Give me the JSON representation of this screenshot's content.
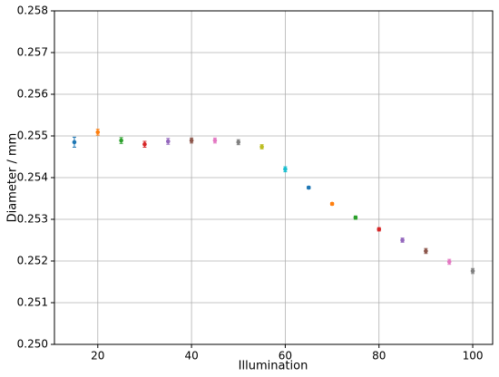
{
  "chart_data": {
    "type": "errorbar",
    "x_label": "Illumination",
    "y_label": "Diameter / mm",
    "x": [
      15,
      20,
      25,
      30,
      35,
      40,
      45,
      50,
      55,
      60,
      65,
      70,
      75,
      80,
      85,
      90,
      95,
      100
    ],
    "values": [
      0.25485,
      0.25509,
      0.25489,
      0.2548,
      0.25487,
      0.25489,
      0.25489,
      0.25485,
      0.25474,
      0.2542,
      0.25376,
      0.25337,
      0.25304,
      0.25276,
      0.2525,
      0.25224,
      0.25198,
      0.25176
    ],
    "errors": [
      0.00012,
      7e-05,
      7e-05,
      7e-05,
      7e-05,
      6e-05,
      6e-05,
      6e-05,
      5e-05,
      6e-05,
      3e-05,
      3e-05,
      4e-05,
      4e-05,
      5e-05,
      6e-05,
      6e-05,
      6e-05
    ],
    "colors": [
      "#1f77b4",
      "#ff7f0e",
      "#2ca02c",
      "#d62728",
      "#9467bd",
      "#8c564b",
      "#e377c2",
      "#7f7f7f",
      "#bcbd22",
      "#17becf",
      "#1f77b4",
      "#ff7f0e",
      "#2ca02c",
      "#d62728",
      "#9467bd",
      "#8c564b",
      "#e377c2",
      "#7f7f7f"
    ],
    "xlim": [
      10.75,
      104.25
    ],
    "xticks": [
      20,
      40,
      60,
      80,
      100
    ],
    "ylim": [
      0.25,
      0.258
    ],
    "yticks": [
      {
        "value": 0.25,
        "label": "0.250"
      },
      0.251,
      0.252,
      0.253,
      0.254,
      0.255,
      0.256,
      0.257,
      0.258
    ],
    "grid": true
  }
}
